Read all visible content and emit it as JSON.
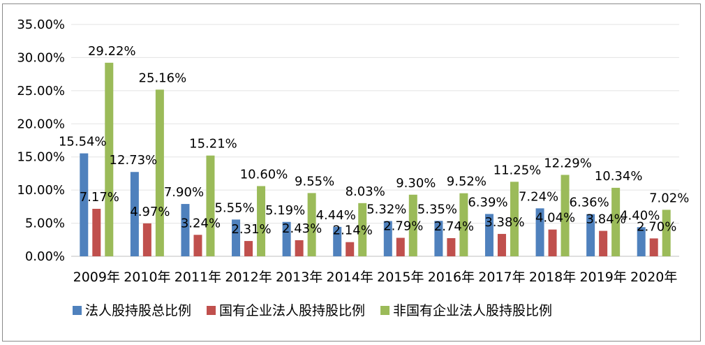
{
  "chart_data": {
    "type": "bar",
    "categories": [
      "2009年",
      "2010年",
      "2011年",
      "2012年",
      "2013年",
      "2014年",
      "2015年",
      "2016年",
      "2017年",
      "2018年",
      "2019年",
      "2020年"
    ],
    "y_tick_labels": [
      "0.00%",
      "5.00%",
      "10.00%",
      "15.00%",
      "20.00%",
      "25.00%",
      "30.00%",
      "35.00%"
    ],
    "ylim": [
      0,
      35
    ],
    "grid": true,
    "legend_position": "bottom",
    "series": [
      {
        "name": "法人股持股总比例",
        "color": "#4f81bd",
        "values": [
          15.54,
          12.73,
          7.9,
          5.55,
          5.19,
          4.44,
          5.32,
          5.35,
          6.39,
          7.24,
          6.36,
          4.4
        ],
        "labels": [
          "15.54%",
          "12.73%",
          "7.90%",
          "5.55%",
          "5.19%",
          "4.44%",
          "5.32%",
          "5.35%",
          "6.39%",
          "7.24%",
          "6.36%",
          "4.40%"
        ]
      },
      {
        "name": "国有企业法人股持股比例",
        "color": "#c0504d",
        "values": [
          7.17,
          4.97,
          3.24,
          2.31,
          2.43,
          2.14,
          2.79,
          2.74,
          3.38,
          4.04,
          3.84,
          2.7
        ],
        "labels": [
          "7.17%",
          "4.97%",
          "3.24%",
          "2.31%",
          "2.43%",
          "2.14%",
          "2.79%",
          "2.74%",
          "3.38%",
          "4.04%",
          "3.84%",
          "2.70%"
        ]
      },
      {
        "name": "非国有企业法人股持股比例",
        "color": "#9bbb59",
        "values": [
          29.22,
          25.16,
          15.21,
          10.6,
          9.55,
          8.03,
          9.3,
          9.52,
          11.25,
          12.29,
          10.34,
          7.02
        ],
        "labels": [
          "29.22%",
          "25.16%",
          "15.21%",
          "10.60%",
          "9.55%",
          "8.03%",
          "9.30%",
          "9.52%",
          "11.25%",
          "12.29%",
          "10.34%",
          "7.02%"
        ]
      }
    ]
  }
}
